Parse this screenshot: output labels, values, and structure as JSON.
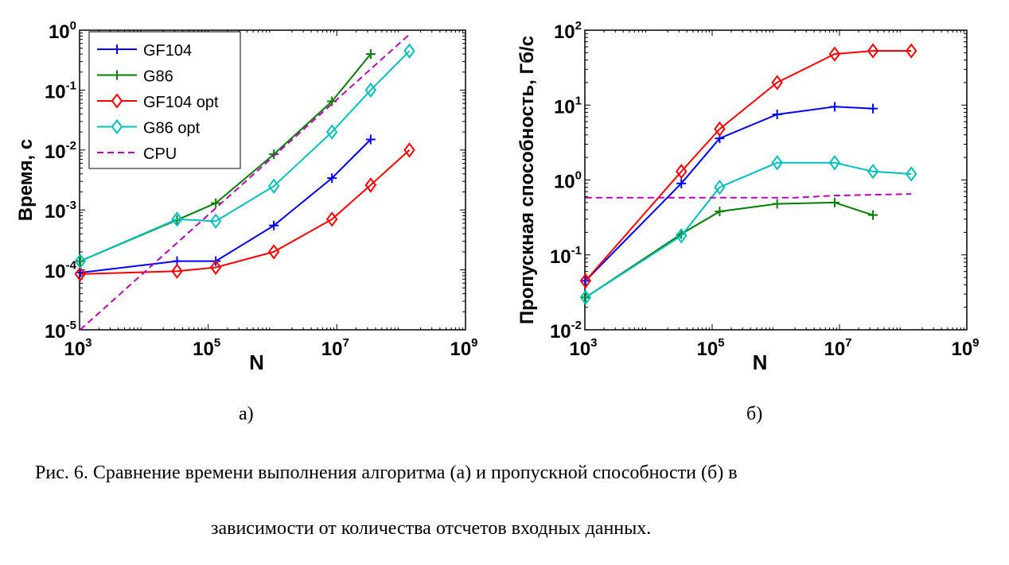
{
  "chart_data": [
    {
      "type": "line",
      "panel_label": "а)",
      "xlabel": "N",
      "ylabel": "Время, с",
      "xscale": "log",
      "yscale": "log",
      "xlim": [
        1000,
        1000000000
      ],
      "ylim": [
        1e-05,
        1
      ],
      "xticks": [
        {
          "v": 1000,
          "b": "10",
          "e": "3"
        },
        {
          "v": 100000,
          "b": "10",
          "e": "5"
        },
        {
          "v": 10000000,
          "b": "10",
          "e": "7"
        },
        {
          "v": 1000000000,
          "b": "10",
          "e": "9"
        }
      ],
      "yticks": [
        {
          "v": 1e-05,
          "b": "10",
          "e": "-5"
        },
        {
          "v": 0.0001,
          "b": "10",
          "e": "-4"
        },
        {
          "v": 0.001,
          "b": "10",
          "e": "-3"
        },
        {
          "v": 0.01,
          "b": "10",
          "e": "-2"
        },
        {
          "v": 0.1,
          "b": "10",
          "e": "-1"
        },
        {
          "v": 1,
          "b": "10",
          "e": "0"
        }
      ],
      "legend": "top-left",
      "series": [
        {
          "name": "GF104",
          "color": "#0000ff",
          "marker": "plus",
          "dash": false,
          "x": [
            1024,
            32768,
            131072,
            1048576,
            8388608,
            33554432
          ],
          "y": [
            9e-05,
            0.00014,
            0.00014,
            0.00055,
            0.0034,
            0.015
          ]
        },
        {
          "name": "G86",
          "color": "#007f00",
          "marker": "plus",
          "dash": false,
          "x": [
            1024,
            32768,
            131072,
            1048576,
            8388608,
            33554432
          ],
          "y": [
            0.00014,
            0.00068,
            0.0013,
            0.0085,
            0.065,
            0.4
          ]
        },
        {
          "name": "GF104 opt",
          "color": "#ff0000",
          "marker": "diamond",
          "dash": false,
          "x": [
            1024,
            32768,
            131072,
            1048576,
            8388608,
            33554432,
            134217728
          ],
          "y": [
            8.5e-05,
            9.5e-05,
            0.00011,
            0.0002,
            0.0007,
            0.0026,
            0.01
          ]
        },
        {
          "name": "G86 opt",
          "color": "#00bfbf",
          "marker": "diamond",
          "dash": false,
          "x": [
            1024,
            32768,
            131072,
            1048576,
            8388608,
            33554432,
            134217728
          ],
          "y": [
            0.00014,
            0.0007,
            0.00065,
            0.0025,
            0.02,
            0.1,
            0.45
          ]
        },
        {
          "name": "CPU",
          "color": "#bf00bf",
          "marker": "none",
          "dash": true,
          "x": [
            1024,
            134217728
          ],
          "y": [
            1e-05,
            0.85
          ]
        }
      ]
    },
    {
      "type": "line",
      "panel_label": "б)",
      "xlabel": "N",
      "ylabel": "Пропускная способность, Гб/с",
      "xscale": "log",
      "yscale": "log",
      "xlim": [
        1000,
        1000000000
      ],
      "ylim": [
        0.01,
        100
      ],
      "xticks": [
        {
          "v": 1000,
          "b": "10",
          "e": "3"
        },
        {
          "v": 100000,
          "b": "10",
          "e": "5"
        },
        {
          "v": 10000000,
          "b": "10",
          "e": "7"
        },
        {
          "v": 1000000000,
          "b": "10",
          "e": "9"
        }
      ],
      "yticks": [
        {
          "v": 0.01,
          "b": "10",
          "e": "-2"
        },
        {
          "v": 0.1,
          "b": "10",
          "e": "-1"
        },
        {
          "v": 1,
          "b": "10",
          "e": "0"
        },
        {
          "v": 10,
          "b": "10",
          "e": "1"
        },
        {
          "v": 100,
          "b": "10",
          "e": "2"
        }
      ],
      "series": [
        {
          "name": "GF104",
          "color": "#0000ff",
          "marker": "plus",
          "dash": false,
          "x": [
            1024,
            32768,
            131072,
            1048576,
            8388608,
            33554432
          ],
          "y": [
            0.045,
            0.9,
            3.6,
            7.5,
            9.5,
            9.0
          ]
        },
        {
          "name": "G86",
          "color": "#007f00",
          "marker": "plus",
          "dash": false,
          "x": [
            1024,
            32768,
            131072,
            1048576,
            8388608,
            33554432
          ],
          "y": [
            0.027,
            0.19,
            0.38,
            0.48,
            0.5,
            0.34
          ]
        },
        {
          "name": "GF104 opt",
          "color": "#ff0000",
          "marker": "diamond",
          "dash": false,
          "x": [
            1024,
            32768,
            131072,
            1048576,
            8388608,
            33554432,
            134217728
          ],
          "y": [
            0.045,
            1.3,
            4.8,
            20,
            48,
            53,
            53
          ]
        },
        {
          "name": "G86 opt",
          "color": "#00bfbf",
          "marker": "diamond",
          "dash": false,
          "x": [
            1024,
            32768,
            131072,
            1048576,
            8388608,
            33554432,
            134217728
          ],
          "y": [
            0.027,
            0.18,
            0.8,
            1.7,
            1.7,
            1.3,
            1.2
          ]
        },
        {
          "name": "CPU",
          "color": "#bf00bf",
          "marker": "none",
          "dash": true,
          "x": [
            1024,
            2000000,
            8388608,
            134217728
          ],
          "y": [
            0.58,
            0.58,
            0.62,
            0.65
          ]
        }
      ]
    }
  ],
  "caption": {
    "line1": "Рис. 6. Сравнение времени выполнения алгоритма (а) и пропускной способности (б) в",
    "line2": "зависимости от количества отсчетов входных данных."
  }
}
